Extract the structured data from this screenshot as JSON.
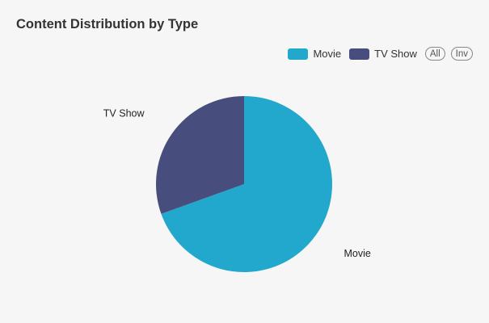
{
  "chart_data": {
    "type": "pie",
    "title": "Content Distribution by Type",
    "categories": [
      "Movie",
      "TV Show"
    ],
    "values": [
      69.5,
      30.5
    ],
    "colors": [
      "#22a8cc",
      "#474d7c"
    ],
    "legend_position": "top-right"
  },
  "legend": {
    "all_label": "All",
    "inv_label": "Inv"
  }
}
